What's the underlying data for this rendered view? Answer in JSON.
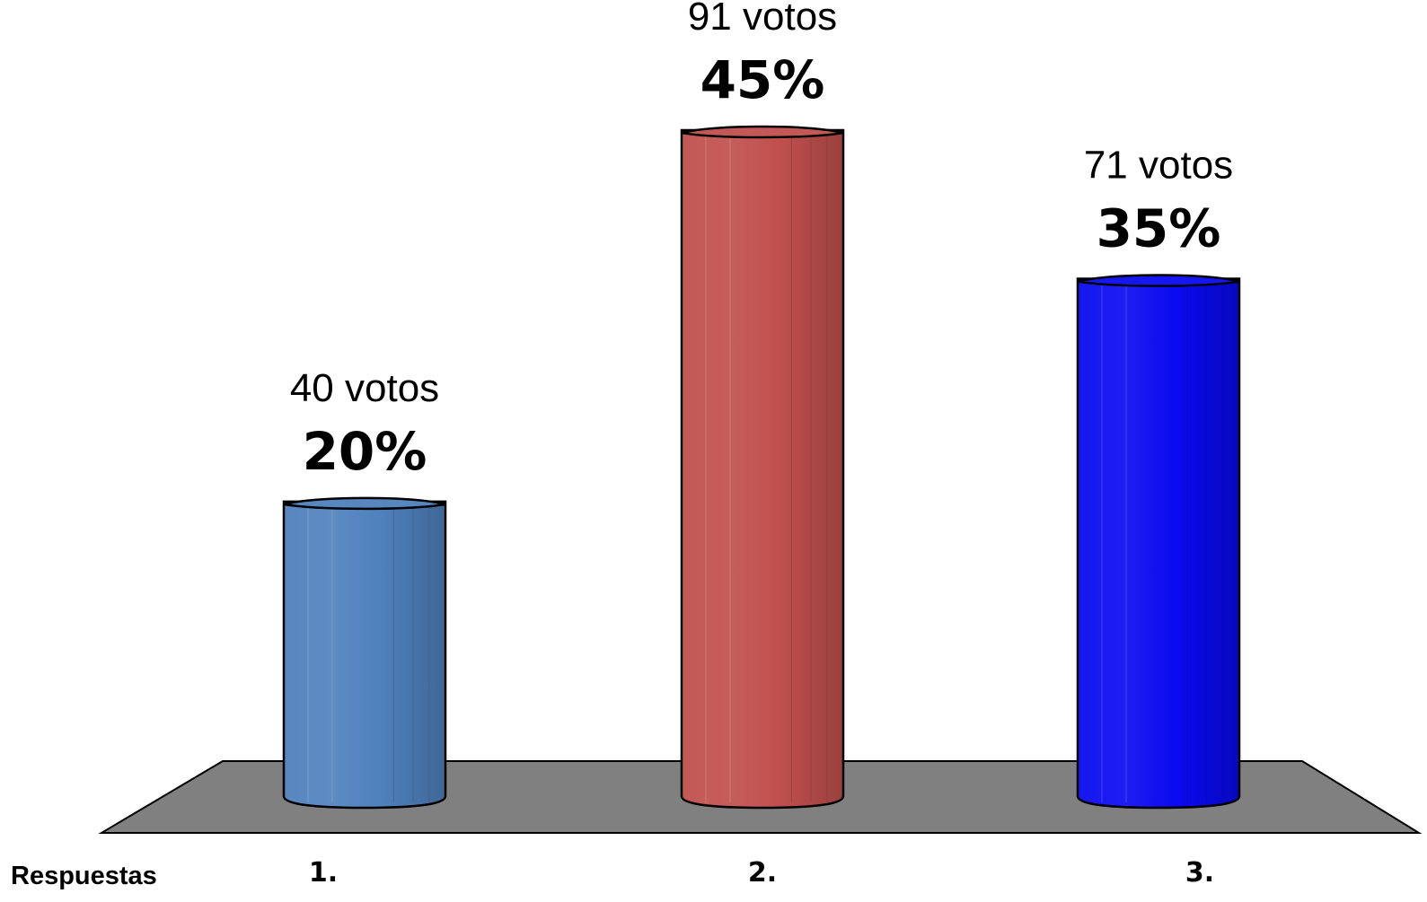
{
  "chart_data": {
    "type": "bar",
    "bar_style": "cylinder-3d",
    "categories": [
      "1.",
      "2.",
      "3."
    ],
    "values": [
      20,
      45,
      35
    ],
    "value_unit": "%",
    "votes": [
      40,
      91,
      71
    ],
    "vote_labels": [
      "40 votos",
      "91 votos",
      "71 votos"
    ],
    "percent_labels": [
      "20%",
      "45%",
      "35%"
    ],
    "colors": [
      "#4f81bd",
      "#c0504d",
      "#0a0af0"
    ],
    "floor_color": "#808080",
    "xlabel": "Respuestas",
    "ylabel": "",
    "ylim": [
      0,
      45
    ],
    "grid": false,
    "legend": "none"
  }
}
